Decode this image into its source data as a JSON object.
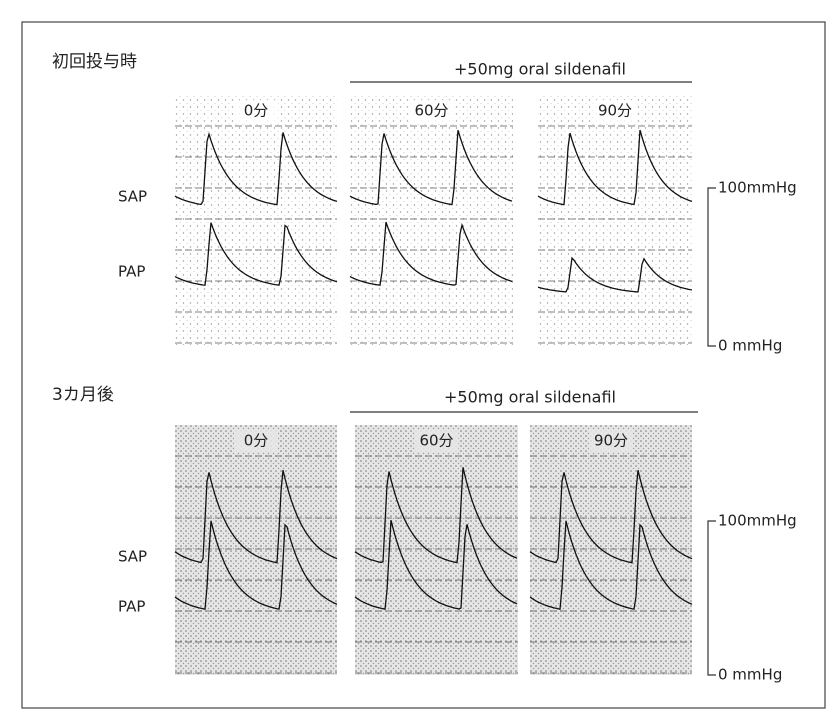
{
  "sections": [
    {
      "title": "初回投与時",
      "drug_label": "+50mg oral sildenafil",
      "panels": [
        {
          "label": "0分"
        },
        {
          "label": "60分"
        },
        {
          "label": "90分"
        }
      ],
      "trace_labels": [
        "SAP",
        "PAP"
      ],
      "scale": {
        "top": "100mmHg",
        "bottom": "0 mmHg"
      }
    },
    {
      "title": "3カ月後",
      "drug_label": "+50mg oral sildenafil",
      "panels": [
        {
          "label": "0分"
        },
        {
          "label": "60分"
        },
        {
          "label": "90分"
        }
      ],
      "trace_labels": [
        "SAP",
        "PAP"
      ],
      "scale": {
        "top": "100mmHg",
        "bottom": "0 mmHg"
      }
    }
  ]
}
